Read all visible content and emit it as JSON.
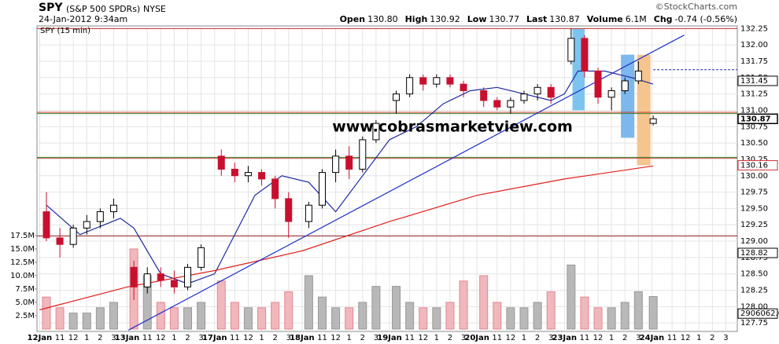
{
  "chart_data": {
    "type": "candlestick",
    "symbol": "SPY",
    "name": "(S&P 500 SPDRs)",
    "exchange": "NYSE",
    "date": "24-Jan-2012 9:34am",
    "copyright": "©StockCharts.com",
    "legend": "SPY (15 min)",
    "watermark": "www.cobrasmarketview.com",
    "quote": [
      {
        "label": "Open",
        "value": "130.80"
      },
      {
        "label": "High",
        "value": "130.92"
      },
      {
        "label": "Low",
        "value": "130.77"
      },
      {
        "label": "Last",
        "value": "130.87"
      },
      {
        "label": "Volume",
        "value": "6.1M"
      },
      {
        "label": "Chg",
        "value": "-0.74 (-0.56%)"
      }
    ],
    "xlim": [
      -0.2,
      51.85
    ],
    "xticks": [
      {
        "value": 0,
        "label": "12Jan"
      },
      {
        "value": 1.5,
        "label": "11"
      },
      {
        "value": 2.5,
        "label": "12"
      },
      {
        "value": 3.5,
        "label": "1"
      },
      {
        "value": 4.5,
        "label": "2"
      },
      {
        "value": 5.5,
        "label": "3"
      },
      {
        "value": 6.5,
        "label": "13Jan"
      },
      {
        "value": 8,
        "label": "11"
      },
      {
        "value": 9,
        "label": "12"
      },
      {
        "value": 10,
        "label": "1"
      },
      {
        "value": 11,
        "label": "2"
      },
      {
        "value": 12,
        "label": "3"
      },
      {
        "value": 13,
        "label": "17Jan"
      },
      {
        "value": 14.5,
        "label": "11"
      },
      {
        "value": 15.5,
        "label": "12"
      },
      {
        "value": 16.5,
        "label": "1"
      },
      {
        "value": 17.5,
        "label": "2"
      },
      {
        "value": 18.5,
        "label": "3"
      },
      {
        "value": 19.5,
        "label": "18Jan"
      },
      {
        "value": 21,
        "label": "11"
      },
      {
        "value": 22,
        "label": "12"
      },
      {
        "value": 23,
        "label": "1"
      },
      {
        "value": 24,
        "label": "2"
      },
      {
        "value": 25,
        "label": "3"
      },
      {
        "value": 26,
        "label": "19Jan"
      },
      {
        "value": 27.5,
        "label": "11"
      },
      {
        "value": 28.5,
        "label": "12"
      },
      {
        "value": 29.5,
        "label": "1"
      },
      {
        "value": 30.5,
        "label": "2"
      },
      {
        "value": 31.5,
        "label": "3"
      },
      {
        "value": 32.5,
        "label": "20Jan"
      },
      {
        "value": 34,
        "label": "11"
      },
      {
        "value": 35,
        "label": "12"
      },
      {
        "value": 36,
        "label": "1"
      },
      {
        "value": 37,
        "label": "2"
      },
      {
        "value": 38,
        "label": "3"
      },
      {
        "value": 39,
        "label": "23Jan"
      },
      {
        "value": 40.5,
        "label": "11"
      },
      {
        "value": 41.5,
        "label": "12"
      },
      {
        "value": 42.5,
        "label": "1"
      },
      {
        "value": 43.5,
        "label": "2"
      },
      {
        "value": 44.5,
        "label": "3"
      },
      {
        "value": 45.5,
        "label": "24Jan"
      },
      {
        "value": 47,
        "label": "11"
      },
      {
        "value": 48,
        "label": "12"
      },
      {
        "value": 49,
        "label": "1"
      },
      {
        "value": 50,
        "label": "2"
      },
      {
        "value": 51,
        "label": "3"
      }
    ],
    "ylim": [
      127.62,
      132.29
    ],
    "yticks": [
      127.75,
      {
        "value": 128,
        "label": "128.00"
      },
      128.25,
      {
        "value": 128.5,
        "label": "128.50"
      },
      128.75,
      {
        "value": 129,
        "label": "129.00"
      },
      129.25,
      {
        "value": 129.5,
        "label": "129.50"
      },
      129.75,
      {
        "value": 130,
        "label": "130.00"
      },
      130.25,
      {
        "value": 130.5,
        "label": "130.50"
      },
      130.75,
      {
        "value": 131,
        "label": "131.00"
      },
      131.25,
      {
        "value": 131.5,
        "label": "131.50"
      },
      131.75,
      {
        "value": 132,
        "label": "132.00"
      },
      132.25
    ],
    "y2lim": [
      -0.44,
      56.76
    ],
    "y2ticks": [
      {
        "value": 2.5,
        "label": "2.5M"
      },
      {
        "value": 5,
        "label": "5.0M"
      },
      {
        "value": 7.5,
        "label": "7.5M"
      },
      {
        "value": 10,
        "label": "10.0M"
      },
      {
        "value": 12.5,
        "label": "12.5M"
      },
      {
        "value": 15,
        "label": "15.0M"
      },
      {
        "value": 17.5,
        "label": "17.5M"
      }
    ],
    "grid": true,
    "up_color": "#000000",
    "down_color": "#c8102e",
    "x": [
      0.5,
      1.5,
      2.5,
      3.5,
      4.5,
      5.5,
      7,
      8,
      9,
      10,
      11,
      12,
      13.5,
      14.5,
      15.5,
      16.5,
      17.5,
      18.5,
      20,
      21,
      22,
      23,
      24,
      25,
      26.5,
      27.5,
      28.5,
      29.5,
      30.5,
      31.5,
      33,
      34,
      35,
      36,
      37,
      38,
      39.5,
      40.5,
      41.5,
      42.5,
      43.5,
      44.5,
      45.6
    ],
    "open": [
      129.45,
      129.05,
      128.95,
      129.2,
      129.3,
      129.45,
      128.6,
      128.3,
      128.5,
      128.4,
      128.3,
      128.6,
      130.3,
      130.1,
      130.0,
      130.05,
      129.95,
      129.65,
      129.3,
      129.55,
      130.05,
      130.3,
      130.1,
      130.55,
      131.15,
      131.25,
      131.5,
      131.4,
      131.5,
      131.4,
      131.3,
      131.15,
      131.05,
      131.15,
      131.25,
      131.35,
      131.75,
      132.1,
      131.6,
      131.2,
      131.3,
      131.45,
      130.8
    ],
    "high": [
      129.75,
      129.2,
      129.25,
      129.4,
      129.5,
      129.65,
      128.7,
      128.6,
      128.6,
      128.55,
      128.65,
      128.95,
      130.4,
      130.2,
      130.15,
      130.1,
      130.0,
      129.75,
      129.6,
      130.1,
      130.4,
      130.45,
      130.6,
      130.85,
      131.3,
      131.55,
      131.55,
      131.55,
      131.55,
      131.45,
      131.35,
      131.2,
      131.2,
      131.3,
      131.4,
      131.4,
      132.25,
      132.15,
      131.65,
      131.35,
      131.5,
      131.75,
      130.92
    ],
    "low": [
      129.0,
      128.75,
      128.9,
      129.1,
      129.2,
      129.35,
      128.1,
      128.2,
      128.3,
      128.2,
      128.25,
      128.55,
      130.0,
      129.9,
      129.9,
      129.85,
      129.5,
      129.05,
      129.2,
      129.5,
      129.9,
      129.95,
      130.05,
      130.5,
      130.95,
      131.2,
      131.3,
      131.35,
      131.35,
      131.2,
      131.05,
      131.0,
      130.95,
      131.1,
      131.15,
      131.1,
      131.7,
      131.5,
      131.1,
      131.0,
      131.25,
      131.4,
      130.77
    ],
    "close": [
      129.05,
      128.95,
      129.2,
      129.3,
      129.45,
      129.55,
      128.3,
      128.5,
      128.4,
      128.3,
      128.6,
      128.9,
      130.1,
      130.0,
      130.05,
      129.95,
      129.65,
      129.3,
      129.55,
      130.05,
      130.3,
      130.1,
      130.55,
      130.8,
      131.25,
      131.5,
      131.4,
      131.5,
      131.4,
      131.3,
      131.15,
      131.05,
      131.15,
      131.25,
      131.35,
      131.2,
      132.1,
      131.6,
      131.2,
      131.3,
      131.45,
      131.6,
      130.87
    ],
    "volume": [
      6,
      4,
      3,
      3,
      4,
      5,
      15,
      10,
      5,
      4,
      4,
      5,
      9,
      5,
      4,
      4,
      5,
      7,
      10,
      6,
      4,
      4,
      5,
      8,
      8,
      5,
      4,
      4,
      5,
      9,
      10,
      5,
      4,
      4,
      5,
      7,
      12,
      6,
      4,
      4,
      5,
      7,
      6.1
    ],
    "averages": [
      {
        "color": "#1f2a9e",
        "x": [
          0.5,
          3,
          6,
          7,
          9,
          11,
          13,
          14,
          16,
          18,
          20,
          22,
          24,
          26,
          28,
          30,
          32,
          34,
          36,
          38,
          39,
          40,
          42,
          44,
          45.6
        ],
        "values": [
          129.55,
          129.1,
          129.35,
          129.2,
          128.5,
          128.35,
          128.5,
          128.9,
          129.7,
          130.0,
          129.9,
          129.45,
          130.0,
          130.55,
          130.75,
          131.1,
          131.3,
          131.35,
          131.25,
          131.15,
          131.25,
          131.6,
          131.6,
          131.5,
          131.4
        ]
      },
      {
        "color": "#e0201b",
        "x": [
          0,
          6.5,
          13,
          19.5,
          26,
          32.5,
          39,
          45.6
        ],
        "values": [
          127.95,
          128.3,
          128.55,
          128.85,
          129.3,
          129.7,
          129.95,
          130.15
        ]
      }
    ],
    "trendline": {
      "color": "#2030c8",
      "x": [
        6.6,
        47.9
      ],
      "values": [
        127.64,
        132.15
      ]
    },
    "hlines": [
      {
        "value": 132.25,
        "color": "#d03030"
      },
      {
        "value": 130.97,
        "color": "#d03030"
      },
      {
        "value": 130.27,
        "color": "#d03030"
      },
      {
        "value": 130.95,
        "color": "#2e8b2e"
      },
      {
        "value": 130.28,
        "color": "#2e8b2e"
      },
      {
        "value": 129.08,
        "color": "#8b1a1a"
      }
    ],
    "dashed_level": {
      "value": 131.62,
      "from": 45.6,
      "color": "#1f2ab0"
    },
    "highlights": [
      {
        "x": [
          39.6,
          40.5
        ],
        "values": [
          132.25,
          131.0
        ],
        "color": "#7cc4f0"
      },
      {
        "x": [
          43.2,
          44.2
        ],
        "values": [
          131.85,
          130.58
        ],
        "color": "#7cb8ee"
      },
      {
        "x": [
          44.4,
          45.4
        ],
        "values": [
          131.85,
          130.16
        ],
        "color": "#f6c48e"
      }
    ],
    "markers": [
      {
        "value": 131.45,
        "color": "#000000"
      },
      {
        "value": 130.87,
        "color": "#000000",
        "bold": true
      },
      {
        "value": 130.16,
        "color": "#d03030"
      },
      {
        "value": 128.82,
        "color": "#000000"
      },
      {
        "value": 2.906062,
        "label": "2906062.0",
        "axis": "y2",
        "color": "#000000"
      }
    ]
  }
}
